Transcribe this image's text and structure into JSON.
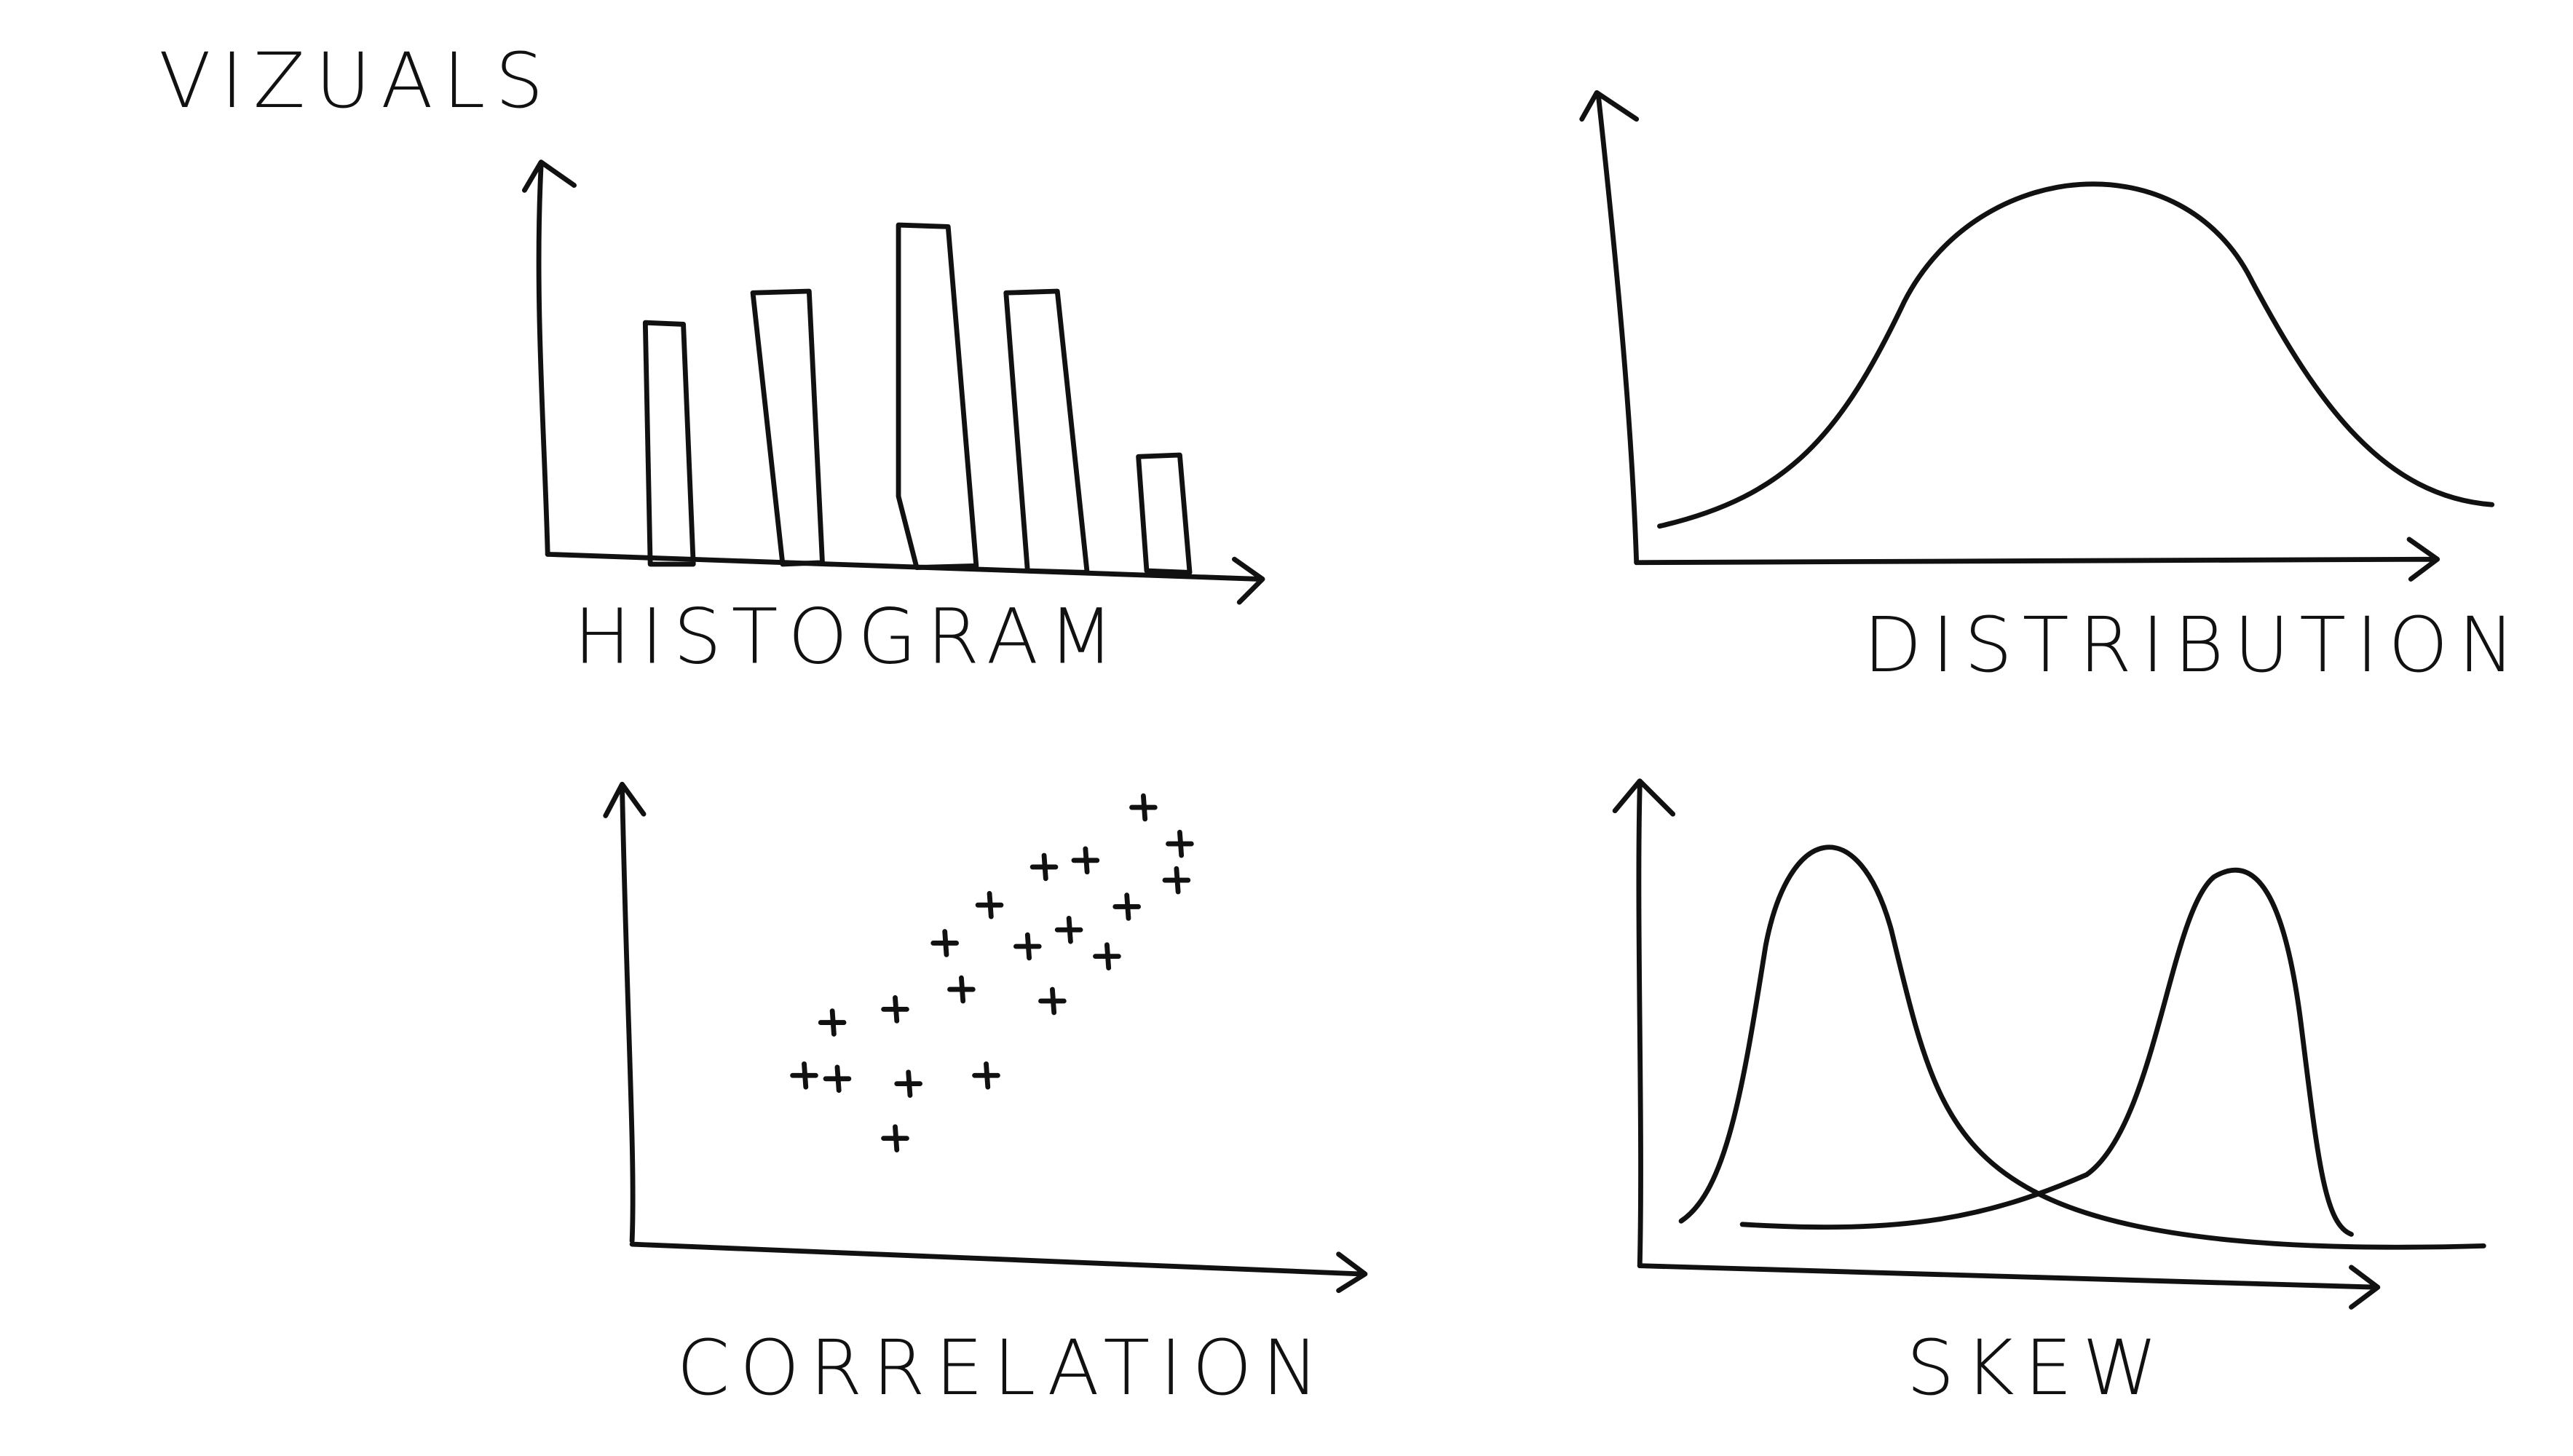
{
  "title": "VIZUALS",
  "panels": [
    {
      "label": "HISTOGRAM"
    },
    {
      "label": "DISTRIBUTION"
    },
    {
      "label": "CORRELATION"
    },
    {
      "label": "SKEW"
    }
  ]
}
